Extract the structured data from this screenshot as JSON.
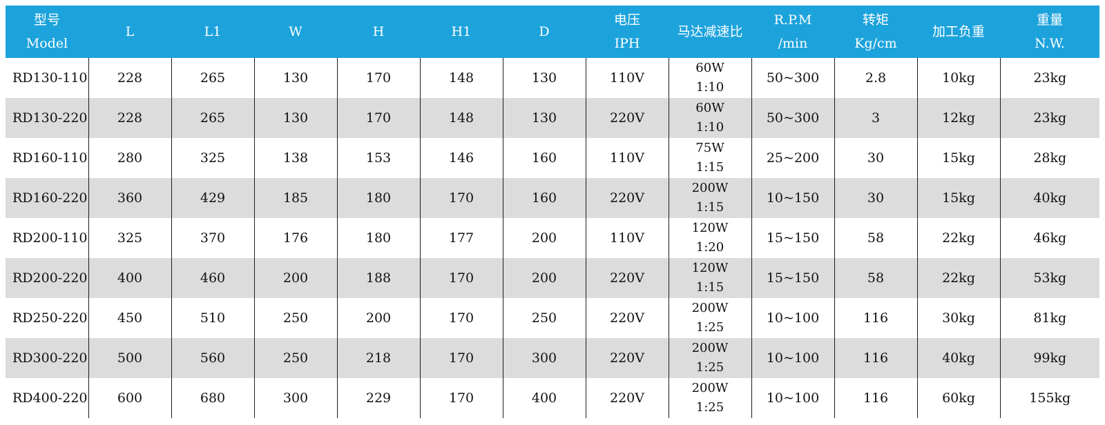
{
  "table": {
    "headers": [
      {
        "line1": "型号",
        "line2": "Model"
      },
      {
        "line1": "L",
        "line2": ""
      },
      {
        "line1": "L1",
        "line2": ""
      },
      {
        "line1": "W",
        "line2": ""
      },
      {
        "line1": "H",
        "line2": ""
      },
      {
        "line1": "H1",
        "line2": ""
      },
      {
        "line1": "D",
        "line2": ""
      },
      {
        "line1": "电压",
        "line2": "IPH"
      },
      {
        "line1": "马达减速比",
        "line2": ""
      },
      {
        "line1": "R.P.M",
        "line2": "/min"
      },
      {
        "line1": "转矩",
        "line2": "Kg/cm"
      },
      {
        "line1": "加工负重",
        "line2": ""
      },
      {
        "line1": "重量",
        "line2": "N.W."
      }
    ],
    "rows": [
      {
        "model": "RD130-110",
        "L": "228",
        "L1": "265",
        "W": "130",
        "H": "170",
        "H1": "148",
        "D": "130",
        "voltage": "110V",
        "motor_power": "60W",
        "ratio": "1:10",
        "rpm": "50~300",
        "torque": "2.8",
        "load": "10kg",
        "weight": "23kg"
      },
      {
        "model": "RD130-220",
        "L": "228",
        "L1": "265",
        "W": "130",
        "H": "170",
        "H1": "148",
        "D": "130",
        "voltage": "220V",
        "motor_power": "60W",
        "ratio": "1:10",
        "rpm": "50~300",
        "torque": "3",
        "load": "12kg",
        "weight": "23kg"
      },
      {
        "model": "RD160-110",
        "L": "280",
        "L1": "325",
        "W": "138",
        "H": "153",
        "H1": "146",
        "D": "160",
        "voltage": "110V",
        "motor_power": "75W",
        "ratio": "1:15",
        "rpm": "25~200",
        "torque": "30",
        "load": "15kg",
        "weight": "28kg"
      },
      {
        "model": "RD160-220",
        "L": "360",
        "L1": "429",
        "W": "185",
        "H": "180",
        "H1": "170",
        "D": "160",
        "voltage": "220V",
        "motor_power": "200W",
        "ratio": "1:15",
        "rpm": "10~150",
        "torque": "30",
        "load": "15kg",
        "weight": "40kg"
      },
      {
        "model": "RD200-110",
        "L": "325",
        "L1": "370",
        "W": "176",
        "H": "180",
        "H1": "177",
        "D": "200",
        "voltage": "110V",
        "motor_power": "120W",
        "ratio": "1:20",
        "rpm": "15~150",
        "torque": "58",
        "load": "22kg",
        "weight": "46kg"
      },
      {
        "model": "RD200-220",
        "L": "400",
        "L1": "460",
        "W": "200",
        "H": "188",
        "H1": "170",
        "D": "200",
        "voltage": "220V",
        "motor_power": "120W",
        "ratio": "1:15",
        "rpm": "15~150",
        "torque": "58",
        "load": "22kg",
        "weight": "53kg"
      },
      {
        "model": "RD250-220",
        "L": "450",
        "L1": "510",
        "W": "250",
        "H": "200",
        "H1": "170",
        "D": "250",
        "voltage": "220V",
        "motor_power": "200W",
        "ratio": "1:25",
        "rpm": "10~100",
        "torque": "116",
        "load": "30kg",
        "weight": "81kg"
      },
      {
        "model": "RD300-220",
        "L": "500",
        "L1": "560",
        "W": "250",
        "H": "218",
        "H1": "170",
        "D": "300",
        "voltage": "220V",
        "motor_power": "200W",
        "ratio": "1:25",
        "rpm": "10~100",
        "torque": "116",
        "load": "40kg",
        "weight": "99kg"
      },
      {
        "model": "RD400-220",
        "L": "600",
        "L1": "680",
        "W": "300",
        "H": "229",
        "H1": "170",
        "D": "400",
        "voltage": "220V",
        "motor_power": "200W",
        "ratio": "1:25",
        "rpm": "10~100",
        "torque": "116",
        "load": "60kg",
        "weight": "155kg"
      }
    ]
  },
  "colors": {
    "header_bg": "#1da3dc",
    "header_text": "#ffffff",
    "stripe_bg": "#dcdcdc",
    "divider": "#1a1a1a"
  }
}
